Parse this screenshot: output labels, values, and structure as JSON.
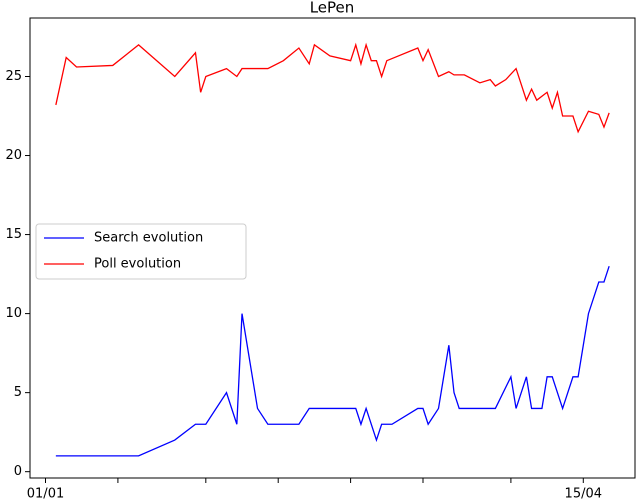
{
  "chart_data": {
    "type": "line",
    "title": "LePen",
    "xlim": [
      "29/12",
      "25/04"
    ],
    "xticks": [
      {
        "value": "01/01",
        "label": "01/01"
      },
      {
        "value": "15/01",
        "label": null
      },
      {
        "value": "01/02",
        "label": null
      },
      {
        "value": "15/02",
        "label": null
      },
      {
        "value": "01/03",
        "label": null
      },
      {
        "value": "15/03",
        "label": null
      },
      {
        "value": "01/04",
        "label": null
      },
      {
        "value": "15/04",
        "label": "15/04"
      }
    ],
    "ylim": [
      -0.4,
      28.7
    ],
    "yticks": [
      0,
      5,
      10,
      15,
      20,
      25
    ],
    "legend": "center-left",
    "series": [
      {
        "name": "Search evolution",
        "color": "#0000ff",
        "x": [
          "03/01",
          "19/01",
          "26/01",
          "30/01",
          "01/02",
          "05/02",
          "07/02",
          "08/02",
          "11/02",
          "13/02",
          "19/02",
          "21/02",
          "02/03",
          "03/03",
          "04/03",
          "06/03",
          "07/03",
          "09/03",
          "14/03",
          "15/03",
          "16/03",
          "18/03",
          "20/03",
          "21/03",
          "22/03",
          "29/03",
          "01/04",
          "02/04",
          "04/04",
          "05/04",
          "07/04",
          "08/04",
          "09/04",
          "11/04",
          "13/04",
          "14/04",
          "15/04",
          "16/04",
          "18/04",
          "19/04",
          "20/04"
        ],
        "values": [
          1,
          1,
          2,
          3,
          3,
          5,
          3,
          10,
          4,
          3,
          3,
          4,
          4,
          3,
          4,
          2,
          3,
          3,
          4,
          4,
          3,
          4,
          8,
          5,
          4,
          4,
          6,
          4,
          6,
          4,
          4,
          6,
          6,
          4,
          6,
          6,
          8,
          10,
          12,
          12,
          13
        ]
      },
      {
        "name": "Poll evolution",
        "color": "#ff0000",
        "x": [
          "03/01",
          "05/01",
          "07/01",
          "14/01",
          "19/01",
          "26/01",
          "30/01",
          "31/01",
          "01/02",
          "05/02",
          "07/02",
          "08/02",
          "13/02",
          "16/02",
          "19/02",
          "21/02",
          "22/02",
          "25/02",
          "01/03",
          "02/03",
          "03/03",
          "04/03",
          "05/03",
          "06/03",
          "07/03",
          "08/03",
          "14/03",
          "15/03",
          "16/03",
          "18/03",
          "20/03",
          "21/03",
          "23/03",
          "26/03",
          "28/03",
          "29/03",
          "31/03",
          "02/04",
          "04/04",
          "05/04",
          "06/04",
          "08/04",
          "09/04",
          "10/04",
          "11/04",
          "13/04",
          "14/04",
          "16/04",
          "18/04",
          "19/04",
          "20/04"
        ],
        "values": [
          23.2,
          26.2,
          25.6,
          25.7,
          27.0,
          25.0,
          26.5,
          24.0,
          25.0,
          25.5,
          25.0,
          25.5,
          25.5,
          26.0,
          26.8,
          25.8,
          27.0,
          26.3,
          26.0,
          27.0,
          25.8,
          27.0,
          26.0,
          26.0,
          25.0,
          26.0,
          26.8,
          26.0,
          26.7,
          25.0,
          25.3,
          25.1,
          25.1,
          24.6,
          24.8,
          24.4,
          24.8,
          25.5,
          23.5,
          24.2,
          23.5,
          24.0,
          23.0,
          24.0,
          22.5,
          22.5,
          21.5,
          22.8,
          22.6,
          21.8,
          22.7
        ]
      }
    ]
  }
}
